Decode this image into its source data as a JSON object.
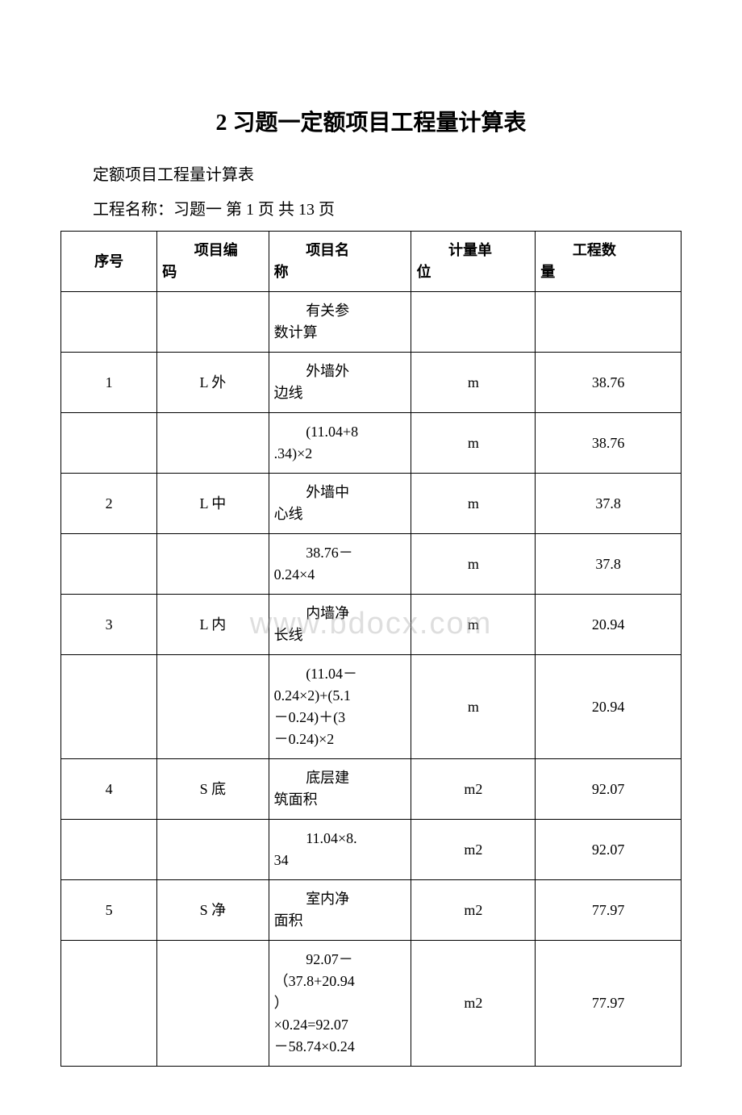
{
  "document": {
    "title": "2 习题一定额项目工程量计算表",
    "subtitle": "定额项目工程量计算表",
    "meta": "工程名称：习题一 第 1 页 共 13 页",
    "watermark": "www.bdocx.com"
  },
  "table": {
    "columns": [
      {
        "label_l1": "序号",
        "label_l2": "",
        "width_pct": 15.5,
        "align": "center"
      },
      {
        "label_l1": "项目编",
        "label_l2": "码",
        "width_pct": 18,
        "align": "left"
      },
      {
        "label_l1": "项目名",
        "label_l2": "称",
        "width_pct": 23,
        "align": "left"
      },
      {
        "label_l1": "计量单",
        "label_l2": "位",
        "width_pct": 20,
        "align": "left"
      },
      {
        "label_l1": "工程数",
        "label_l2": "量",
        "width_pct": 23.5,
        "align": "left"
      }
    ],
    "rows": [
      {
        "c0": "",
        "c1": "",
        "c2_l1": "有关参",
        "c2_l2": "数计算",
        "c3": "",
        "c4": ""
      },
      {
        "c0": "1",
        "c1": "L 外",
        "c2_l1": "外墙外",
        "c2_l2": "边线",
        "c3": "m",
        "c4": "38.76"
      },
      {
        "c0": "",
        "c1": "",
        "c2_l1": "(11.04+8",
        "c2_l2": ".34)×2",
        "c3": "m",
        "c4": "38.76"
      },
      {
        "c0": "2",
        "c1": "L 中",
        "c2_l1": "外墙中",
        "c2_l2": "心线",
        "c3": "m",
        "c4": "37.8"
      },
      {
        "c0": "",
        "c1": "",
        "c2_l1": "38.76－",
        "c2_l2": "0.24×4",
        "c3": "m",
        "c4": "37.8"
      },
      {
        "c0": "3",
        "c1": "L 内",
        "c2_l1": "内墙净",
        "c2_l2": "长线",
        "c3": "m",
        "c4": "20.94"
      },
      {
        "c0": "",
        "c1": "",
        "c2_l1": "(11.04－",
        "c2_rest": "0.24×2)+(5.1\n－0.24)＋(3\n－0.24)×2",
        "c3": "m",
        "c4": "20.94"
      },
      {
        "c0": "4",
        "c1": "S 底",
        "c2_l1": "底层建",
        "c2_l2": "筑面积",
        "c3": "m2",
        "c4": "92.07"
      },
      {
        "c0": "",
        "c1": "",
        "c2_l1": "11.04×8.",
        "c2_l2": "34",
        "c3": "m2",
        "c4": "92.07"
      },
      {
        "c0": "5",
        "c1": "S 净",
        "c2_l1": "室内净",
        "c2_l2": "面积",
        "c3": "m2",
        "c4": "77.97"
      },
      {
        "c0": "",
        "c1": "",
        "c2_l1": "92.07－",
        "c2_rest": "（37.8+20.94\n）\n×0.24=92.07\n－58.74×0.24",
        "c3": "m2",
        "c4": "77.97"
      }
    ],
    "border_color": "#000000",
    "cell_fontsize": 18,
    "background_color": "#ffffff"
  }
}
